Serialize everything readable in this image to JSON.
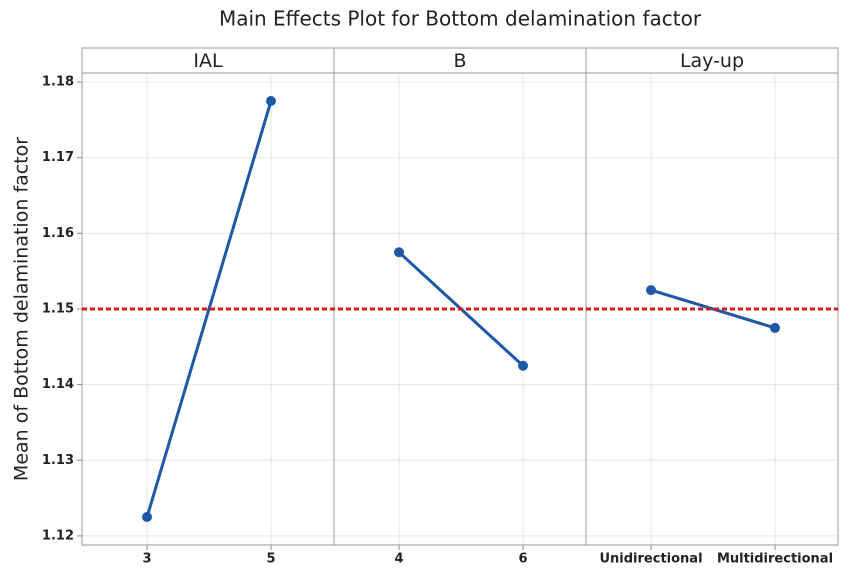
{
  "chart_data": {
    "type": "line",
    "title": "Main Effects Plot for Bottom delamination factor",
    "ylabel": "Mean of Bottom delamination factor",
    "ylim": [
      1.1188,
      1.1812
    ],
    "yticks": [
      1.12,
      1.13,
      1.14,
      1.15,
      1.16,
      1.17,
      1.18
    ],
    "grid": true,
    "color": "#1f58a6",
    "reference_line": 1.15,
    "reference_color": "#cc1f1f",
    "panels": [
      {
        "name": "IAL",
        "categories": [
          "3",
          "5"
        ],
        "values": [
          1.1225,
          1.1775
        ]
      },
      {
        "name": "B",
        "categories": [
          "4",
          "6"
        ],
        "values": [
          1.1575,
          1.1425
        ]
      },
      {
        "name": "Lay-up",
        "categories": [
          "Unidirectional",
          "Multidirectional"
        ],
        "values": [
          1.1525,
          1.1475
        ]
      }
    ]
  }
}
